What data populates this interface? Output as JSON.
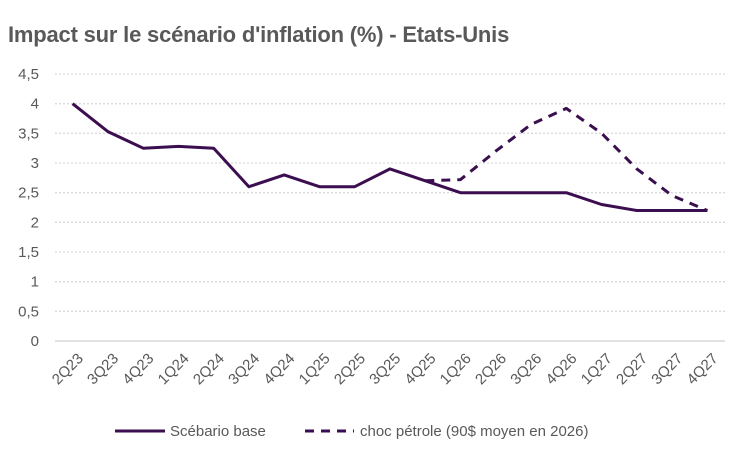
{
  "chart_data": {
    "type": "line",
    "title": "Impact sur le scénario d'inflation (%) - Etats-Unis",
    "xlabel": "",
    "ylabel": "",
    "ylim": [
      0,
      4.5
    ],
    "yticks": [
      "0",
      "0,5",
      "1",
      "1,5",
      "2",
      "2,5",
      "3",
      "3,5",
      "4",
      "4,5"
    ],
    "ytick_values": [
      0,
      0.5,
      1,
      1.5,
      2,
      2.5,
      3,
      3.5,
      4,
      4.5
    ],
    "grid": true,
    "legend_position": "bottom",
    "categories": [
      "2Q23",
      "3Q23",
      "4Q23",
      "1Q24",
      "2Q24",
      "3Q24",
      "4Q24",
      "1Q25",
      "2Q25",
      "3Q25",
      "4Q25",
      "1Q26",
      "2Q26",
      "3Q26",
      "4Q26",
      "1Q27",
      "2Q27",
      "3Q27",
      "4Q27"
    ],
    "series": [
      {
        "name": "Scébario base",
        "style": "solid",
        "color": "#3b0e4f",
        "values": [
          4.0,
          3.53,
          3.25,
          3.28,
          3.25,
          2.6,
          2.8,
          2.6,
          2.6,
          2.9,
          2.7,
          2.5,
          2.5,
          2.5,
          2.5,
          2.3,
          2.2,
          2.2,
          2.2
        ]
      },
      {
        "name": "choc pétrole (90$ moyen en 2026)",
        "style": "dashed",
        "color": "#3b0e4f",
        "values": [
          null,
          null,
          null,
          null,
          null,
          null,
          null,
          null,
          null,
          null,
          2.7,
          2.72,
          3.2,
          3.65,
          3.92,
          3.5,
          2.9,
          2.45,
          2.2
        ]
      }
    ]
  },
  "colors": {
    "text": "#595959",
    "grid": "#d9d9d9",
    "axis": "#d9d9d9"
  }
}
